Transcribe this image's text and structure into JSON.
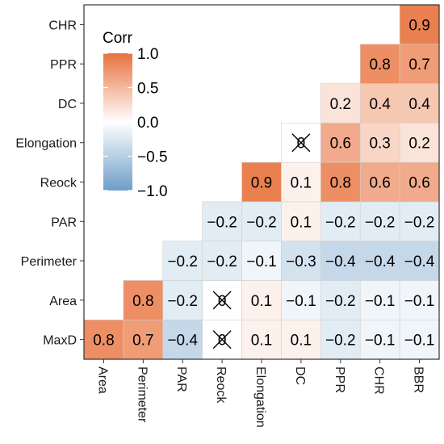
{
  "chart_data": {
    "type": "heatmap",
    "title": "",
    "xlabel": "",
    "ylabel": "",
    "x_categories": [
      "Area",
      "Perimeter",
      "PAR",
      "Reock",
      "Elongation",
      "DC",
      "PPR",
      "CHR",
      "BBR"
    ],
    "y_categories": [
      "MaxD",
      "Area",
      "Perimeter",
      "PAR",
      "Reock",
      "Elongation",
      "DC",
      "PPR",
      "CHR"
    ],
    "cells": [
      {
        "x": "Area",
        "y": "MaxD",
        "value": 0.8,
        "label": "0.8"
      },
      {
        "x": "Perimeter",
        "y": "MaxD",
        "value": 0.7,
        "label": "0.7"
      },
      {
        "x": "PAR",
        "y": "MaxD",
        "value": -0.4,
        "label": "−0.4"
      },
      {
        "x": "Reock",
        "y": "MaxD",
        "value": 0.0,
        "label": "0",
        "crossed": true
      },
      {
        "x": "Elongation",
        "y": "MaxD",
        "value": 0.1,
        "label": "0.1"
      },
      {
        "x": "DC",
        "y": "MaxD",
        "value": 0.1,
        "label": "0.1"
      },
      {
        "x": "PPR",
        "y": "MaxD",
        "value": -0.2,
        "label": "−0.2"
      },
      {
        "x": "CHR",
        "y": "MaxD",
        "value": -0.1,
        "label": "−0.1"
      },
      {
        "x": "BBR",
        "y": "MaxD",
        "value": -0.1,
        "label": "−0.1"
      },
      {
        "x": "Perimeter",
        "y": "Area",
        "value": 0.8,
        "label": "0.8"
      },
      {
        "x": "PAR",
        "y": "Area",
        "value": -0.2,
        "label": "−0.2"
      },
      {
        "x": "Reock",
        "y": "Area",
        "value": 0.0,
        "label": "0",
        "crossed": true
      },
      {
        "x": "Elongation",
        "y": "Area",
        "value": 0.1,
        "label": "0.1"
      },
      {
        "x": "DC",
        "y": "Area",
        "value": -0.1,
        "label": "−0.1"
      },
      {
        "x": "PPR",
        "y": "Area",
        "value": -0.2,
        "label": "−0.2"
      },
      {
        "x": "CHR",
        "y": "Area",
        "value": -0.1,
        "label": "−0.1"
      },
      {
        "x": "BBR",
        "y": "Area",
        "value": -0.1,
        "label": "−0.1"
      },
      {
        "x": "PAR",
        "y": "Perimeter",
        "value": -0.2,
        "label": "−0.2"
      },
      {
        "x": "Reock",
        "y": "Perimeter",
        "value": -0.2,
        "label": "−0.2"
      },
      {
        "x": "Elongation",
        "y": "Perimeter",
        "value": -0.1,
        "label": "−0.1"
      },
      {
        "x": "DC",
        "y": "Perimeter",
        "value": -0.3,
        "label": "−0.3"
      },
      {
        "x": "PPR",
        "y": "Perimeter",
        "value": -0.4,
        "label": "−0.4"
      },
      {
        "x": "CHR",
        "y": "Perimeter",
        "value": -0.4,
        "label": "−0.4"
      },
      {
        "x": "BBR",
        "y": "Perimeter",
        "value": -0.4,
        "label": "−0.4"
      },
      {
        "x": "Reock",
        "y": "PAR",
        "value": -0.2,
        "label": "−0.2"
      },
      {
        "x": "Elongation",
        "y": "PAR",
        "value": -0.2,
        "label": "−0.2"
      },
      {
        "x": "DC",
        "y": "PAR",
        "value": 0.1,
        "label": "0.1"
      },
      {
        "x": "PPR",
        "y": "PAR",
        "value": -0.2,
        "label": "−0.2"
      },
      {
        "x": "CHR",
        "y": "PAR",
        "value": -0.2,
        "label": "−0.2"
      },
      {
        "x": "BBR",
        "y": "PAR",
        "value": -0.2,
        "label": "−0.2"
      },
      {
        "x": "Elongation",
        "y": "Reock",
        "value": 0.9,
        "label": "0.9"
      },
      {
        "x": "DC",
        "y": "Reock",
        "value": 0.1,
        "label": "0.1"
      },
      {
        "x": "PPR",
        "y": "Reock",
        "value": 0.8,
        "label": "0.8"
      },
      {
        "x": "CHR",
        "y": "Reock",
        "value": 0.6,
        "label": "0.6"
      },
      {
        "x": "BBR",
        "y": "Reock",
        "value": 0.6,
        "label": "0.6"
      },
      {
        "x": "DC",
        "y": "Elongation",
        "value": 0.0,
        "label": "0",
        "crossed": true
      },
      {
        "x": "PPR",
        "y": "Elongation",
        "value": 0.6,
        "label": "0.6"
      },
      {
        "x": "CHR",
        "y": "Elongation",
        "value": 0.3,
        "label": "0.3"
      },
      {
        "x": "BBR",
        "y": "Elongation",
        "value": 0.2,
        "label": "0.2"
      },
      {
        "x": "PPR",
        "y": "DC",
        "value": 0.2,
        "label": "0.2"
      },
      {
        "x": "CHR",
        "y": "DC",
        "value": 0.4,
        "label": "0.4"
      },
      {
        "x": "BBR",
        "y": "DC",
        "value": 0.4,
        "label": "0.4"
      },
      {
        "x": "CHR",
        "y": "PPR",
        "value": 0.8,
        "label": "0.8"
      },
      {
        "x": "BBR",
        "y": "PPR",
        "value": 0.7,
        "label": "0.7"
      },
      {
        "x": "BBR",
        "y": "CHR",
        "value": 0.9,
        "label": "0.9"
      }
    ],
    "legend": {
      "title": "Corr",
      "placement": "top-left",
      "range": [
        -1.0,
        1.0
      ],
      "tick_values": [
        1.0,
        0.5,
        0.0,
        -0.5,
        -1.0
      ],
      "tick_labels": [
        "1.0",
        "0.5",
        "0.0",
        "−0.5",
        "−1.0"
      ]
    },
    "colors": {
      "low": "#6d9ec8",
      "mid": "#ffffff",
      "high": "#e8723d",
      "grid_line": "#d0d0d0",
      "panel_border": "#333333",
      "text": "#000000",
      "axis_text": "#1a1a1a"
    }
  }
}
